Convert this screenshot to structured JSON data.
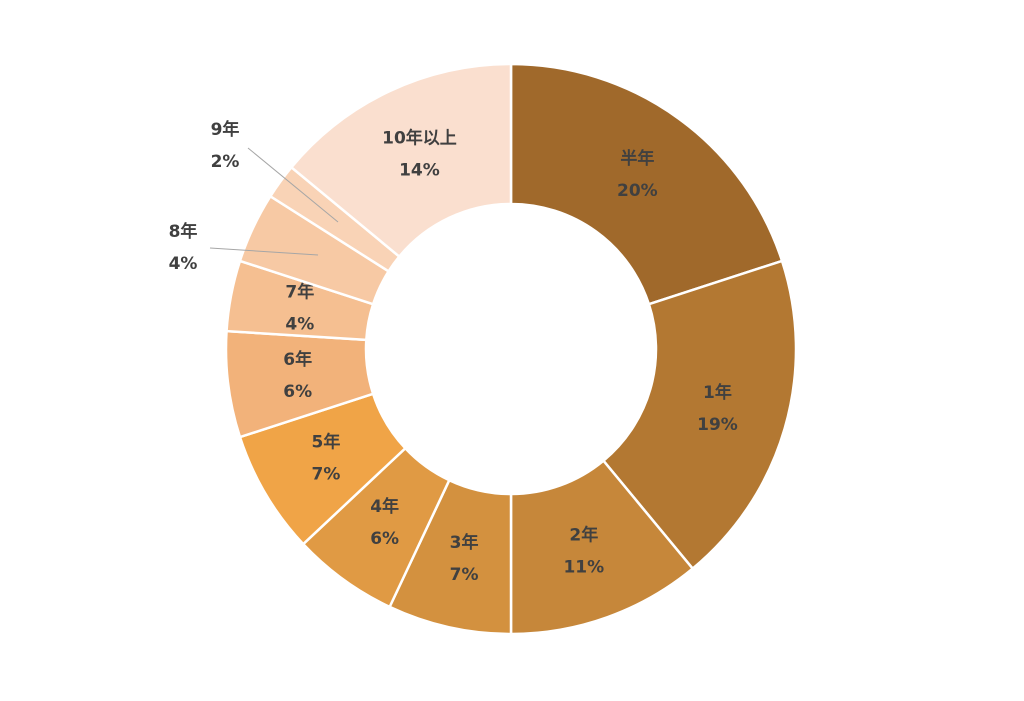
{
  "chart_data": {
    "type": "pie",
    "categories": [
      "半年",
      "1年",
      "2年",
      "3年",
      "4年",
      "5年",
      "6年",
      "7年",
      "8年",
      "9年",
      "10年以上"
    ],
    "values": [
      20,
      19,
      11,
      7,
      6,
      7,
      6,
      4,
      4,
      2,
      14
    ],
    "value_labels": [
      "20%",
      "19%",
      "11%",
      "7%",
      "6%",
      "7%",
      "6%",
      "4%",
      "4%",
      "2%",
      "14%"
    ],
    "colors": [
      "#a0692b",
      "#b37832",
      "#c6873a",
      "#d3913f",
      "#e09a44",
      "#f0a447",
      "#f2b27a",
      "#f5bf91",
      "#f7c9a4",
      "#f9d3b6",
      "#fadfcf"
    ]
  }
}
